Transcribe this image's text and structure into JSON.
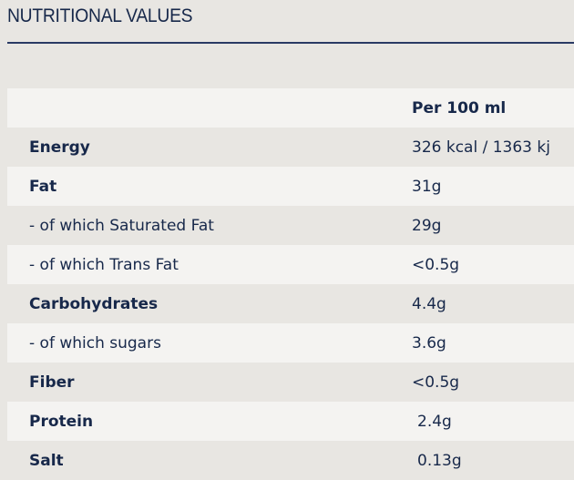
{
  "header": {
    "title": "NUTRITIONAL VALUES"
  },
  "table": {
    "column_header": "Per 100 ml",
    "rows": [
      [
        "Energy",
        "326 kcal / 1363 kj"
      ],
      [
        "Fat",
        "31g"
      ],
      [
        "- of which Saturated Fat",
        "29g"
      ],
      [
        "- of which Trans Fat",
        "<0.5g"
      ],
      [
        "Carbohydrates",
        "4.4g"
      ],
      [
        "- of which sugars",
        "3.6g"
      ],
      [
        "Fiber",
        "<0.5g"
      ],
      [
        "Protein",
        "2.4g"
      ],
      [
        "Salt",
        "0.13g"
      ]
    ]
  }
}
